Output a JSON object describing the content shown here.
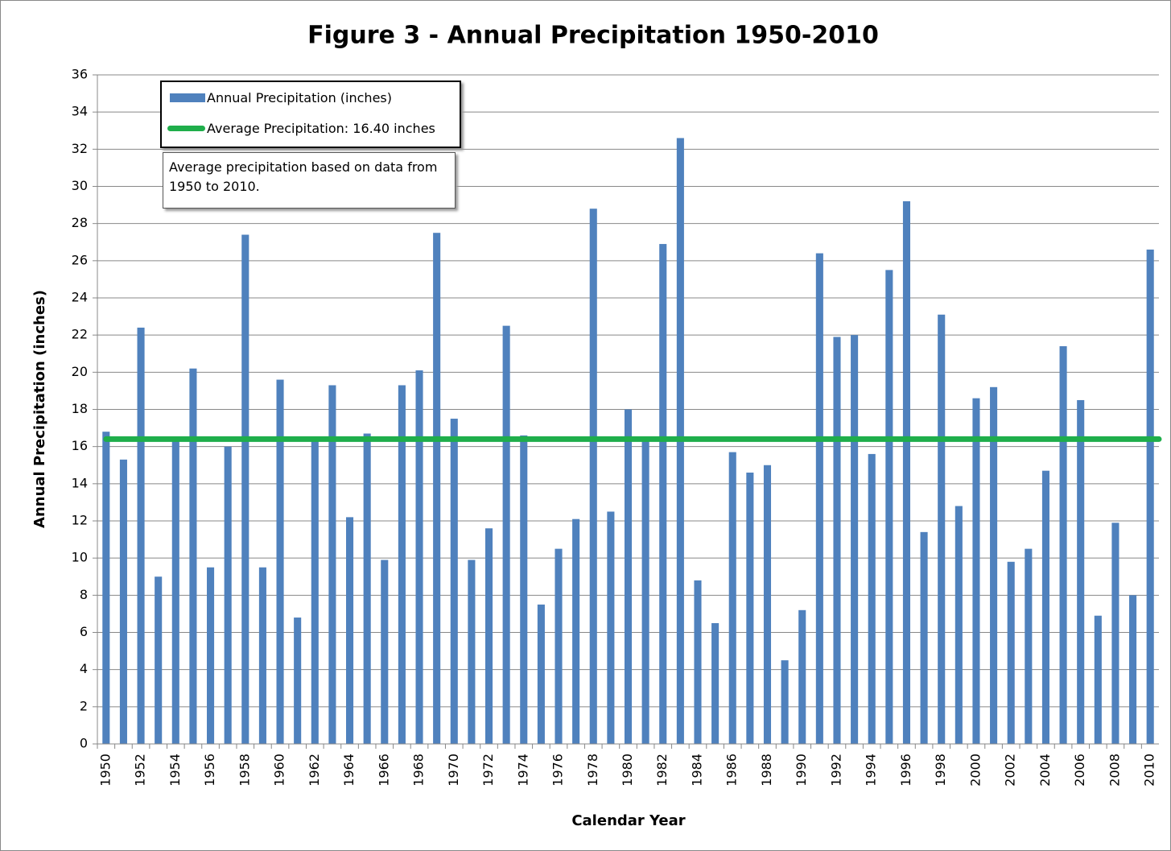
{
  "chart_data": {
    "type": "bar",
    "title": "Figure 3 - Annual Precipitation 1950-2010",
    "x_label": "Calendar Year",
    "y_label": "Annual Precipitation (inches)",
    "categories": [
      "1950",
      null,
      "1952",
      null,
      "1954",
      null,
      "1956",
      null,
      "1958",
      null,
      "1960",
      null,
      "1962",
      null,
      "1964",
      null,
      "1966",
      null,
      "1968",
      null,
      "1970",
      null,
      "1972",
      null,
      "1974",
      null,
      "1976",
      null,
      "1978",
      null,
      "1980",
      null,
      "1982",
      null,
      "1984",
      null,
      "1986",
      null,
      "1988",
      null,
      "1990",
      null,
      "1992",
      null,
      "1994",
      null,
      "1996",
      null,
      "1998",
      null,
      "2000",
      null,
      "2002",
      null,
      "2004",
      null,
      "2006",
      null,
      "2008",
      null,
      "2010"
    ],
    "series": [
      {
        "name": "Annual Precipitation (inches)",
        "color": "#4f81bd",
        "values": [
          16.8,
          15.3,
          22.4,
          9.0,
          16.3,
          20.2,
          9.5,
          16.0,
          27.4,
          9.5,
          19.6,
          6.8,
          16.3,
          19.3,
          12.2,
          16.7,
          9.9,
          19.3,
          20.1,
          27.5,
          17.5,
          9.9,
          11.6,
          22.5,
          16.6,
          7.5,
          10.5,
          12.1,
          28.8,
          12.5,
          18.0,
          16.4,
          26.9,
          32.6,
          8.8,
          6.5,
          15.7,
          14.6,
          15.0,
          4.5,
          7.2,
          26.4,
          21.9,
          22.0,
          15.6,
          25.5,
          29.2,
          11.4,
          23.1,
          12.8,
          18.6,
          19.2,
          9.8,
          10.5,
          14.7,
          21.4,
          18.5,
          6.9,
          11.9,
          8.0,
          26.6
        ]
      }
    ],
    "average": {
      "name": "Average Precipitation: 16.40 inches",
      "value": 16.4,
      "color": "#1fae4b"
    },
    "annotation": "Average precipitation based on data from 1950 to 2010.",
    "ylim": [
      0,
      36
    ],
    "yticks": [
      0,
      2,
      4,
      6,
      8,
      10,
      12,
      14,
      16,
      18,
      20,
      22,
      24,
      26,
      28,
      30,
      32,
      34,
      36
    ],
    "grid": true
  }
}
